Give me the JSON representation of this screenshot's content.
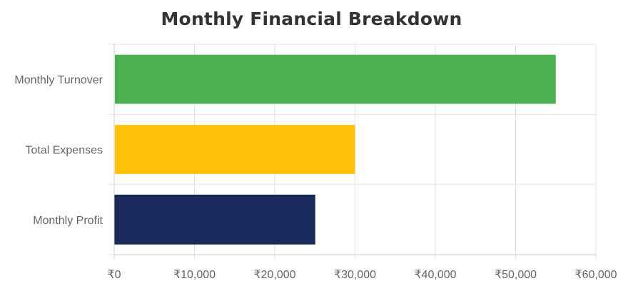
{
  "chart_data": {
    "type": "bar",
    "orientation": "horizontal",
    "title": "Monthly Financial Breakdown",
    "categories": [
      "Monthly Turnover",
      "Total Expenses",
      "Monthly Profit"
    ],
    "values": [
      55000,
      30000,
      25000
    ],
    "colors": [
      "#4caf50",
      "#ffc107",
      "#1a2a5c"
    ],
    "xlim": [
      0,
      60000
    ],
    "xticks": [
      0,
      10000,
      20000,
      30000,
      40000,
      50000,
      60000
    ],
    "tick_prefix": "₹",
    "grid": true,
    "legend": "none",
    "xlabel": "",
    "ylabel": ""
  }
}
